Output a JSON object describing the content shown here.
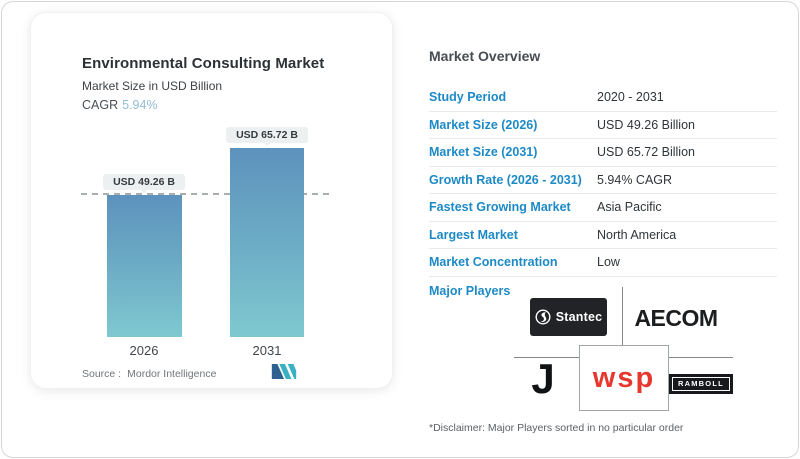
{
  "left_card": {
    "title": "Environmental Consulting Market",
    "subtitle": "Market Size in USD Billion",
    "cagr_label": "CAGR",
    "cagr_value": "5.94%",
    "source_label": "Source :",
    "source_value": "Mordor Intelligence"
  },
  "chart_data": {
    "type": "bar",
    "title": "Environmental Consulting Market",
    "subtitle": "Market Size in USD Billion",
    "ylabel": "USD Billion",
    "categories": [
      "2026",
      "2031"
    ],
    "values": [
      49.26,
      65.72
    ],
    "value_labels": [
      "USD 49.26 B",
      "USD 65.72 B"
    ],
    "reference_line_value": 49.26,
    "ylim": [
      0,
      65.72
    ],
    "grid": false,
    "bar_color_top": "#5d92bd",
    "bar_color_bottom": "#7fc8d0"
  },
  "overview": {
    "heading": "Market Overview",
    "rows": [
      {
        "label": "Study Period",
        "value": "2020 - 2031"
      },
      {
        "label": "Market Size (2026)",
        "value": "USD 49.26 Billion"
      },
      {
        "label": "Market Size (2031)",
        "value": "USD 65.72 Billion"
      },
      {
        "label": "Growth Rate (2026 - 2031)",
        "value": "5.94% CAGR"
      },
      {
        "label": "Fastest Growing Market",
        "value": "Asia Pacific"
      },
      {
        "label": "Largest Market",
        "value": "North America"
      },
      {
        "label": "Market Concentration",
        "value": "Low"
      }
    ],
    "major_players_label": "Major Players",
    "logos": {
      "stantec": "Stantec",
      "aecom": "AECOM",
      "jacobs_initial": "J",
      "wsp": "wsp",
      "ramboll": "RAMBOLL"
    },
    "disclaimer": "*Disclaimer: Major Players sorted in no particular order"
  },
  "colors": {
    "accent_blue": "#1d8ac6",
    "cagr_light_blue": "#93bcd8",
    "bar_gradient_top": "#5d92bd",
    "bar_gradient_bottom": "#7fc8d0",
    "wsp_red": "#e6382e"
  }
}
